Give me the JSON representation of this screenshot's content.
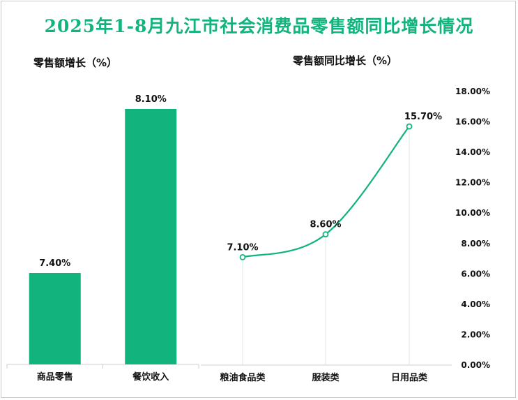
{
  "title": "2025年1-8月九江市社会消费品零售额同比增长情况",
  "colors": {
    "accent": "#12b37d",
    "text": "#111111",
    "grid": "#e6e6e6"
  },
  "chart_data": [
    {
      "type": "bar",
      "title": "零售额增长（%）",
      "categories": [
        "商品零售",
        "餐饮收入"
      ],
      "values": [
        7.4,
        8.1
      ],
      "value_labels": [
        "7.40%",
        "8.10%"
      ],
      "legend": "none"
    },
    {
      "type": "line",
      "title": "零售额同比增长（%）",
      "categories": [
        "粮油食品类",
        "服装类",
        "日用品类"
      ],
      "values": [
        7.1,
        8.6,
        15.7
      ],
      "value_labels": [
        "7.10%",
        "8.60%",
        "15.70%"
      ],
      "ylim": [
        0,
        18
      ],
      "yticks": [
        "0.00%",
        "2.00%",
        "4.00%",
        "6.00%",
        "8.00%",
        "10.00%",
        "12.00%",
        "14.00%",
        "16.00%",
        "18.00%"
      ],
      "legend": "none"
    }
  ]
}
